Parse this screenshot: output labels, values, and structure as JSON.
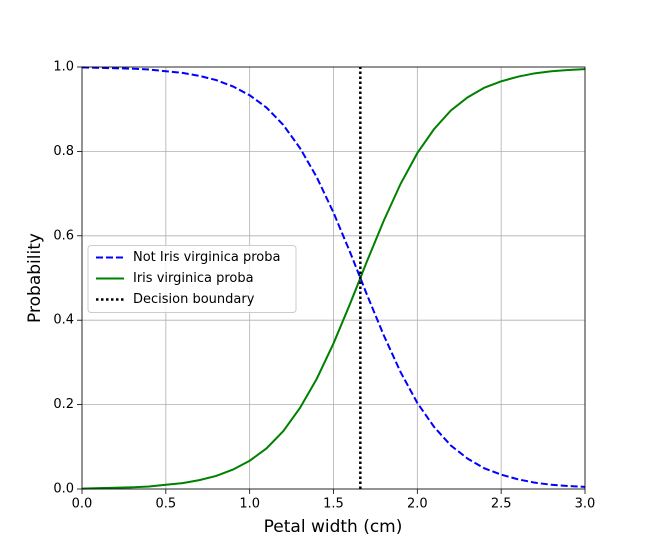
{
  "chart_data": {
    "type": "line",
    "xlabel": "Petal width (cm)",
    "ylabel": "Probability",
    "x": [
      0,
      0.1,
      0.2,
      0.3,
      0.4,
      0.5,
      0.6,
      0.7,
      0.8,
      0.9,
      1.0,
      1.1,
      1.2,
      1.3,
      1.4,
      1.5,
      1.6,
      1.7,
      1.8,
      1.9,
      2.0,
      2.1,
      2.2,
      2.3,
      2.4,
      2.5,
      2.6,
      2.7,
      2.8,
      2.9,
      3.0
    ],
    "series": [
      {
        "name": "Not Iris virginica proba",
        "color": "#0000ff",
        "style": "dashed",
        "values": [
          0.999,
          0.998,
          0.997,
          0.996,
          0.994,
          0.99,
          0.986,
          0.979,
          0.969,
          0.954,
          0.933,
          0.904,
          0.863,
          0.808,
          0.739,
          0.655,
          0.56,
          0.46,
          0.364,
          0.277,
          0.204,
          0.147,
          0.103,
          0.072,
          0.049,
          0.034,
          0.023,
          0.015,
          0.01,
          0.007,
          0.005
        ]
      },
      {
        "name": "Iris virginica proba",
        "color": "#008000",
        "style": "solid",
        "values": [
          0.001,
          0.002,
          0.003,
          0.004,
          0.006,
          0.01,
          0.014,
          0.021,
          0.031,
          0.046,
          0.067,
          0.096,
          0.137,
          0.192,
          0.261,
          0.345,
          0.44,
          0.54,
          0.636,
          0.723,
          0.796,
          0.853,
          0.897,
          0.928,
          0.951,
          0.966,
          0.977,
          0.985,
          0.99,
          0.993,
          0.995
        ]
      },
      {
        "name": "Decision boundary",
        "color": "#000000",
        "style": "dotted",
        "x": [
          1.66,
          1.66
        ],
        "values": [
          0,
          1
        ]
      }
    ],
    "xlim": [
      0,
      3
    ],
    "ylim": [
      0,
      1
    ],
    "xticks": [
      {
        "value": 0,
        "label": "0.0"
      },
      0.5,
      {
        "value": 1,
        "label": "1.0"
      },
      1.5,
      {
        "value": 2,
        "label": "2.0"
      },
      2.5,
      {
        "value": 3,
        "label": "3.0"
      }
    ],
    "yticks": [
      {
        "value": 0,
        "label": "0.0"
      },
      0.2,
      0.4,
      0.6,
      0.8,
      {
        "value": 1,
        "label": "1.0"
      }
    ],
    "grid": true,
    "legend": "center left"
  }
}
